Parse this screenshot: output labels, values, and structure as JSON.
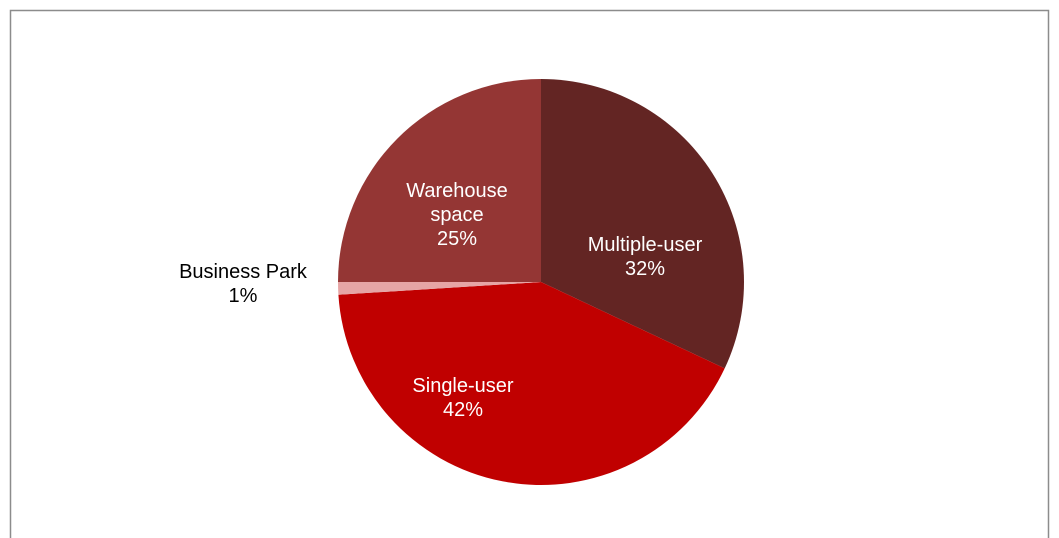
{
  "chart_data": {
    "type": "pie",
    "categories": [
      "Multiple-user",
      "Single-user",
      "Business Park",
      "Warehouse space"
    ],
    "values": [
      32,
      42,
      1,
      25
    ],
    "value_labels": [
      "32%",
      "42%",
      "1%",
      "25%"
    ],
    "colors": [
      "#632523",
      "#c00000",
      "#e6a5a5",
      "#943634"
    ]
  }
}
